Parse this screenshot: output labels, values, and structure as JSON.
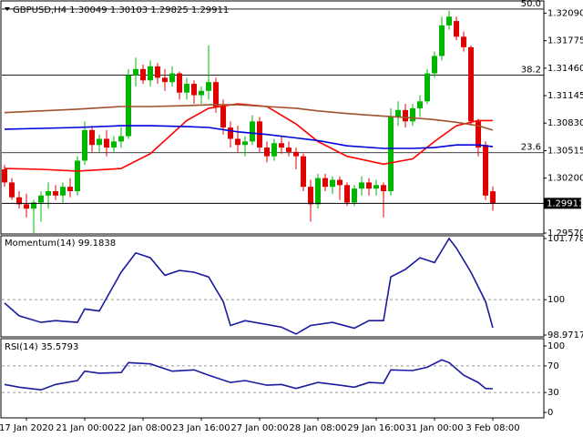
{
  "chart_data": [
    {
      "type": "candlestick",
      "title": "GBPUSD,H4",
      "categories": [
        null,
        null,
        null,
        "17 Jan 2020",
        null,
        null,
        null,
        null,
        null,
        null,
        null,
        "21 Jan 00:00",
        null,
        null,
        null,
        null,
        null,
        null,
        null,
        "22 Jan 08:00",
        null,
        null,
        null,
        null,
        null,
        null,
        null,
        "23 Jan 16:00",
        null,
        null,
        null,
        null,
        null,
        null,
        null,
        "27 Jan 00:00",
        null,
        null,
        null,
        null,
        null,
        null,
        null,
        "28 Jan 08:00",
        null,
        null,
        null,
        null,
        null,
        null,
        null,
        "29 Jan 16:00",
        null,
        null,
        null,
        null,
        null,
        null,
        null,
        "31 Jan 00:00",
        null,
        null,
        null,
        null,
        null,
        null,
        null,
        "3 Feb 08:00"
      ],
      "open": [
        1.303,
        1.3015,
        1.2998,
        1.299,
        1.2985,
        1.2992,
        1.3,
        1.3005,
        1.3,
        1.301,
        1.3005,
        1.304,
        1.3075,
        1.3058,
        1.3065,
        1.3055,
        1.3062,
        1.3068,
        1.3138,
        1.3145,
        1.3132,
        1.3148,
        1.3135,
        1.313,
        1.314,
        1.3118,
        1.3128,
        1.3115,
        1.312,
        1.313,
        1.3102,
        1.3078,
        1.3065,
        1.3058,
        1.3062,
        1.3085,
        1.3055,
        1.3045,
        1.306,
        1.3055,
        1.305,
        1.3045,
        1.301,
        1.299,
        1.302,
        1.301,
        1.3018,
        1.3012,
        1.2992,
        1.3008,
        1.3015,
        1.3008,
        1.3012,
        1.3005,
        1.309,
        1.3098,
        1.3085,
        1.31,
        1.3108,
        1.314,
        1.316,
        1.3195,
        1.32,
        1.3182,
        1.317,
        1.3085,
        1.3058,
        1.30049
      ],
      "high": [
        1.3035,
        1.302,
        1.3005,
        1.3002,
        1.2995,
        1.3005,
        1.3015,
        1.3012,
        1.3015,
        1.302,
        1.3045,
        1.3085,
        1.308,
        1.307,
        1.3075,
        1.3068,
        1.3078,
        1.3145,
        1.3158,
        1.315,
        1.3155,
        1.3152,
        1.3145,
        1.3148,
        1.3142,
        1.3135,
        1.3132,
        1.3125,
        1.3172,
        1.3135,
        1.311,
        1.3085,
        1.308,
        1.3068,
        1.3092,
        1.309,
        1.3062,
        1.3065,
        1.3068,
        1.3062,
        1.3055,
        1.3048,
        1.3018,
        1.3025,
        1.3025,
        1.3022,
        1.3022,
        1.3015,
        1.3012,
        1.3022,
        1.302,
        1.3018,
        1.3015,
        1.31,
        1.3108,
        1.3105,
        1.3105,
        1.3115,
        1.3145,
        1.3165,
        1.3205,
        1.3212,
        1.3205,
        1.3188,
        1.3172,
        1.3088,
        1.3062,
        1.30103
      ],
      "low": [
        1.301,
        1.2995,
        1.2985,
        1.2975,
        1.2957,
        1.297,
        1.2985,
        1.2995,
        1.2992,
        1.2998,
        1.3,
        1.3035,
        1.305,
        1.305,
        1.3045,
        1.305,
        1.3055,
        1.3065,
        1.3125,
        1.3128,
        1.3125,
        1.3128,
        1.312,
        1.3125,
        1.311,
        1.311,
        1.3105,
        1.3105,
        1.311,
        1.3095,
        1.307,
        1.3055,
        1.305,
        1.3045,
        1.3058,
        1.305,
        1.3038,
        1.304,
        1.3048,
        1.3045,
        1.303,
        1.3005,
        1.297,
        1.2985,
        1.3005,
        1.3002,
        1.2995,
        1.2988,
        1.2988,
        1.3,
        1.3,
        1.3,
        1.2975,
        1.3,
        1.308,
        1.3078,
        1.308,
        1.309,
        1.3105,
        1.3135,
        1.3155,
        1.319,
        1.3178,
        1.3165,
        1.308,
        1.3045,
        1.2995,
        1.29825
      ],
      "close": [
        1.3015,
        1.2998,
        1.299,
        1.2985,
        1.2992,
        1.3,
        1.3005,
        1.3,
        1.301,
        1.3005,
        1.304,
        1.3075,
        1.3058,
        1.3065,
        1.3055,
        1.3062,
        1.3068,
        1.3138,
        1.3145,
        1.3132,
        1.3148,
        1.3135,
        1.313,
        1.314,
        1.3118,
        1.3128,
        1.3115,
        1.312,
        1.313,
        1.3102,
        1.3078,
        1.3065,
        1.3058,
        1.3062,
        1.3085,
        1.3055,
        1.3045,
        1.306,
        1.3055,
        1.305,
        1.3045,
        1.301,
        1.299,
        1.302,
        1.301,
        1.3018,
        1.3012,
        1.2992,
        1.3008,
        1.3015,
        1.3008,
        1.3012,
        1.3005,
        1.309,
        1.3098,
        1.3085,
        1.31,
        1.3108,
        1.314,
        1.316,
        1.3195,
        1.3205,
        1.3182,
        1.317,
        1.3085,
        1.3055,
        1.3,
        1.29911
      ],
      "up_color": "#00b400",
      "down_color": "#e00000",
      "lines": [
        {
          "color": "#ff0000",
          "x": [
            0,
            5,
            10,
            16,
            20,
            25,
            28,
            32,
            36,
            40,
            43,
            47,
            52,
            56,
            59,
            62,
            65,
            67
          ],
          "values": [
            1.3031,
            1.303,
            1.3028,
            1.3031,
            1.3048,
            1.3086,
            1.31,
            1.3105,
            1.3102,
            1.3082,
            1.3062,
            1.3045,
            1.3036,
            1.3042,
            1.3062,
            1.308,
            1.3086,
            1.3086
          ]
        },
        {
          "color": "#0000dc",
          "x": [
            0,
            5,
            10,
            16,
            20,
            25,
            28,
            32,
            36,
            40,
            43,
            47,
            52,
            56,
            59,
            62,
            65,
            67
          ],
          "values": [
            1.3076,
            1.3077,
            1.3078,
            1.308,
            1.308,
            1.3079,
            1.3078,
            1.3073,
            1.307,
            1.3066,
            1.3063,
            1.3057,
            1.3054,
            1.3054,
            1.3055,
            1.3058,
            1.3058,
            1.3056
          ]
        },
        {
          "color": "#a0522d",
          "x": [
            0,
            5,
            10,
            16,
            20,
            25,
            28,
            32,
            36,
            40,
            43,
            47,
            52,
            56,
            59,
            62,
            65,
            67
          ],
          "values": [
            1.3095,
            1.3097,
            1.3099,
            1.3102,
            1.3102,
            1.3103,
            1.3104,
            1.3104,
            1.3102,
            1.31,
            1.3097,
            1.3094,
            1.3091,
            1.3089,
            1.3087,
            1.3084,
            1.308,
            1.3075
          ]
        }
      ],
      "fib_levels": [
        {
          "label": "50.0",
          "value": 1.32137
        },
        {
          "label": "38.2",
          "value": 1.31381
        },
        {
          "label": "23.6",
          "value": 1.30491
        }
      ],
      "ylim": [
        1.2957,
        1.3222
      ],
      "yticks": [
        {
          "value": 1.3209,
          "label": "1.32090"
        },
        1.31775,
        {
          "value": 1.3146,
          "label": "1.31460"
        },
        1.31145,
        {
          "value": 1.3083,
          "label": "1.30830"
        },
        1.30515,
        {
          "value": 1.302,
          "label": "1.30200"
        },
        {
          "value": 1.2957,
          "label": "1.29570"
        }
      ]
    },
    {
      "type": "line",
      "title": "Momentum(14)",
      "color": "#1a1aa0",
      "x": [
        0,
        2,
        5,
        7,
        10,
        11,
        13,
        16,
        18,
        20,
        22,
        24,
        26,
        28,
        30,
        31,
        33,
        36,
        38,
        40,
        42,
        45,
        48,
        50,
        52,
        53,
        55,
        57,
        59,
        61,
        62,
        64,
        66,
        67
      ],
      "values": [
        99.9,
        99.53,
        99.34,
        99.39,
        99.34,
        99.73,
        99.67,
        100.8,
        101.36,
        101.22,
        100.71,
        100.85,
        100.8,
        100.66,
        99.95,
        99.25,
        99.39,
        99.28,
        99.2,
        99.0,
        99.25,
        99.34,
        99.17,
        99.39,
        99.39,
        100.66,
        100.88,
        101.22,
        101.08,
        101.7789,
        101.5,
        100.8,
        99.95,
        99.1838
      ],
      "ylim": [
        98.9717,
        101.7789
      ],
      "yticks": [
        101.7789,
        100,
        98.9717
      ]
    },
    {
      "type": "line",
      "title": "RSI(14)",
      "color": "#1a1aa0",
      "x": [
        0,
        2,
        5,
        7,
        10,
        11,
        13,
        16,
        17,
        20,
        23,
        26,
        28,
        31,
        33,
        36,
        38,
        40,
        43,
        46,
        48,
        50,
        52,
        53,
        56,
        58,
        60,
        61,
        63,
        65,
        66,
        67
      ],
      "values": [
        42,
        38,
        34,
        42,
        48,
        62,
        59,
        60,
        75,
        73,
        62,
        64,
        56,
        45,
        48,
        41,
        42,
        36,
        45,
        41,
        38,
        45,
        44,
        64,
        63,
        68,
        79,
        75,
        56,
        45,
        36,
        35.5793
      ],
      "ylim": [
        0,
        100
      ],
      "yticks": [
        100,
        70,
        30,
        0
      ]
    }
  ]
}
